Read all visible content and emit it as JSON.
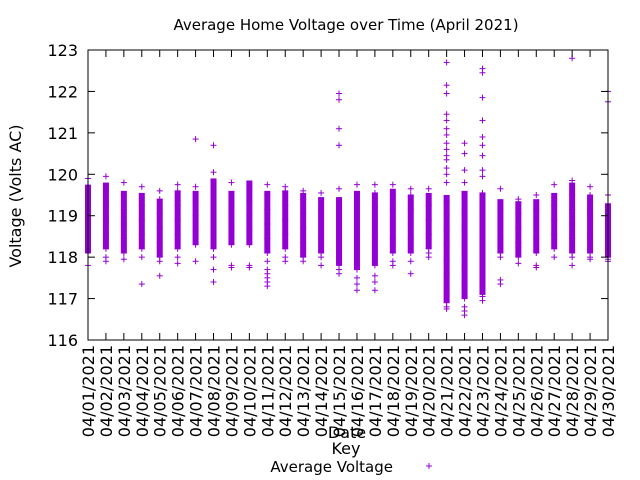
{
  "chart_data": {
    "type": "scatter",
    "title": "Average Home Voltage over Time (April 2021)",
    "xlabel": "Date",
    "ylabel": "Voltage (Volts AC)",
    "ylim": [
      116,
      123
    ],
    "yticks": [
      116,
      117,
      118,
      119,
      120,
      121,
      122,
      123
    ],
    "grid": false,
    "legend": {
      "title": "Key",
      "position": "bottom-center"
    },
    "color": "#9400d3",
    "categories": [
      "04/01/2021",
      "04/02/2021",
      "04/03/2021",
      "04/04/2021",
      "04/05/2021",
      "04/06/2021",
      "04/07/2021",
      "04/08/2021",
      "04/09/2021",
      "04/10/2021",
      "04/11/2021",
      "04/12/2021",
      "04/13/2021",
      "04/14/2021",
      "04/15/2021",
      "04/16/2021",
      "04/17/2021",
      "04/18/2021",
      "04/19/2021",
      "04/20/2021",
      "04/21/2021",
      "04/22/2021",
      "04/23/2021",
      "04/24/2021",
      "04/25/2021",
      "04/26/2021",
      "04/27/2021",
      "04/28/2021",
      "04/29/2021",
      "04/30/2021"
    ],
    "series": [
      {
        "name": "Average Voltage",
        "days": [
          {
            "date": "04/01/2021",
            "low": 118.1,
            "high": 119.75,
            "outliers": [
              117.8,
              119.9,
              118.3,
              118.1
            ]
          },
          {
            "date": "04/02/2021",
            "low": 118.2,
            "high": 119.8,
            "outliers": [
              119.95,
              118.0,
              117.9
            ]
          },
          {
            "date": "04/03/2021",
            "low": 118.1,
            "high": 119.6,
            "outliers": [
              119.8,
              117.95
            ]
          },
          {
            "date": "04/04/2021",
            "low": 118.2,
            "high": 119.55,
            "outliers": [
              119.7,
              117.35,
              118.0
            ]
          },
          {
            "date": "04/05/2021",
            "low": 118.0,
            "high": 119.4,
            "outliers": [
              119.6,
              117.55,
              117.9
            ]
          },
          {
            "date": "04/06/2021",
            "low": 118.2,
            "high": 119.6,
            "outliers": [
              119.75,
              117.85,
              118.0
            ]
          },
          {
            "date": "04/07/2021",
            "low": 118.3,
            "high": 119.6,
            "outliers": [
              120.85,
              117.9,
              119.7
            ]
          },
          {
            "date": "04/08/2021",
            "low": 118.2,
            "high": 119.9,
            "outliers": [
              120.7,
              120.05,
              117.4,
              117.7,
              118.0
            ]
          },
          {
            "date": "04/09/2021",
            "low": 118.3,
            "high": 119.6,
            "outliers": [
              119.8,
              117.75,
              117.8
            ]
          },
          {
            "date": "04/10/2021",
            "low": 118.3,
            "high": 119.85,
            "outliers": [
              117.8,
              117.75
            ]
          },
          {
            "date": "04/11/2021",
            "low": 118.1,
            "high": 119.6,
            "outliers": [
              119.75,
              117.7,
              117.5,
              117.3,
              117.4,
              117.6,
              117.9
            ]
          },
          {
            "date": "04/12/2021",
            "low": 118.2,
            "high": 119.6,
            "outliers": [
              119.7,
              117.9,
              118.0
            ]
          },
          {
            "date": "04/13/2021",
            "low": 118.0,
            "high": 119.55,
            "outliers": [
              117.9,
              119.6
            ]
          },
          {
            "date": "04/14/2021",
            "low": 118.1,
            "high": 119.45,
            "outliers": [
              119.55,
              117.8,
              118.0
            ]
          },
          {
            "date": "04/15/2021",
            "low": 117.8,
            "high": 119.45,
            "outliers": [
              121.95,
              121.8,
              121.1,
              120.7,
              119.65,
              117.7,
              117.6
            ]
          },
          {
            "date": "04/16/2021",
            "low": 117.7,
            "high": 119.6,
            "outliers": [
              119.75,
              117.5,
              117.35,
              117.2,
              118.0
            ]
          },
          {
            "date": "04/17/2021",
            "low": 117.8,
            "high": 119.55,
            "outliers": [
              119.75,
              117.55,
              117.4,
              117.2
            ]
          },
          {
            "date": "04/18/2021",
            "low": 118.1,
            "high": 119.65,
            "outliers": [
              119.75,
              117.9,
              117.8
            ]
          },
          {
            "date": "04/19/2021",
            "low": 118.1,
            "high": 119.5,
            "outliers": [
              119.65,
              117.6,
              117.9
            ]
          },
          {
            "date": "04/20/2021",
            "low": 118.2,
            "high": 119.55,
            "outliers": [
              119.65,
              118.1,
              118.0
            ]
          },
          {
            "date": "04/21/2021",
            "low": 116.9,
            "high": 119.5,
            "outliers": [
              122.7,
              122.15,
              121.95,
              121.45,
              121.3,
              121.1,
              120.95,
              120.75,
              120.6,
              120.45,
              120.35,
              120.15,
              120.0,
              119.8,
              116.8,
              116.75
            ]
          },
          {
            "date": "04/22/2021",
            "low": 117.0,
            "high": 119.6,
            "outliers": [
              120.75,
              120.5,
              120.1,
              119.8,
              116.8,
              116.6,
              116.7
            ]
          },
          {
            "date": "04/23/2021",
            "low": 117.1,
            "high": 119.55,
            "outliers": [
              122.55,
              122.45,
              121.85,
              121.3,
              120.9,
              120.7,
              120.45,
              120.1,
              119.95,
              117.05,
              116.95
            ]
          },
          {
            "date": "04/24/2021",
            "low": 118.1,
            "high": 119.4,
            "outliers": [
              119.65,
              117.45,
              117.35,
              118.0
            ]
          },
          {
            "date": "04/25/2021",
            "low": 118.0,
            "high": 119.35,
            "outliers": [
              119.4,
              117.85
            ]
          },
          {
            "date": "04/26/2021",
            "low": 118.1,
            "high": 119.4,
            "outliers": [
              119.5,
              117.8,
              117.75
            ]
          },
          {
            "date": "04/27/2021",
            "low": 118.2,
            "high": 119.55,
            "outliers": [
              119.75,
              118.0
            ]
          },
          {
            "date": "04/28/2021",
            "low": 118.1,
            "high": 119.8,
            "outliers": [
              122.8,
              119.85,
              117.8,
              118.0
            ]
          },
          {
            "date": "04/29/2021",
            "low": 118.1,
            "high": 119.5,
            "outliers": [
              119.7,
              117.95,
              118.0
            ]
          },
          {
            "date": "04/30/2021",
            "low": 118.0,
            "high": 119.3,
            "outliers": [
              122.0,
              121.75,
              119.5,
              117.9,
              117.95
            ]
          }
        ]
      }
    ]
  }
}
